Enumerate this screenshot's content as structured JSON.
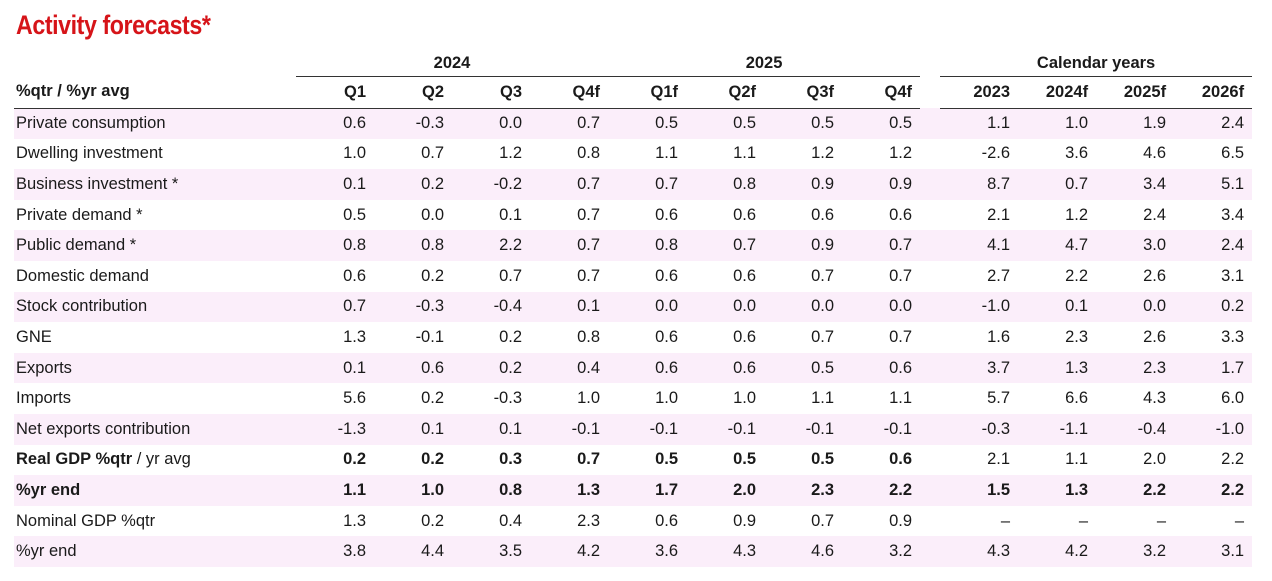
{
  "title": "Activity forecasts*",
  "groups": {
    "g2024": "2024",
    "g2025": "2025",
    "calendar": "Calendar years"
  },
  "header": {
    "label": "%qtr / %yr avg",
    "quarters": [
      "Q1",
      "Q2",
      "Q3",
      "Q4f",
      "Q1f",
      "Q2f",
      "Q3f",
      "Q4f"
    ],
    "years": [
      "2023",
      "2024f",
      "2025f",
      "2026f"
    ]
  },
  "rows": [
    {
      "label": "Private consumption",
      "label_rest": "",
      "q": [
        "0.6",
        "-0.3",
        "0.0",
        "0.7",
        "0.5",
        "0.5",
        "0.5",
        "0.5"
      ],
      "y": [
        "1.1",
        "1.0",
        "1.9",
        "2.4"
      ]
    },
    {
      "label": "Dwelling investment",
      "label_rest": "",
      "q": [
        "1.0",
        "0.7",
        "1.2",
        "0.8",
        "1.1",
        "1.1",
        "1.2",
        "1.2"
      ],
      "y": [
        "-2.6",
        "3.6",
        "4.6",
        "6.5"
      ]
    },
    {
      "label": "Business investment *",
      "label_rest": "",
      "q": [
        "0.1",
        "0.2",
        "-0.2",
        "0.7",
        "0.7",
        "0.8",
        "0.9",
        "0.9"
      ],
      "y": [
        "8.7",
        "0.7",
        "3.4",
        "5.1"
      ]
    },
    {
      "label": "Private demand *",
      "label_rest": "",
      "q": [
        "0.5",
        "0.0",
        "0.1",
        "0.7",
        "0.6",
        "0.6",
        "0.6",
        "0.6"
      ],
      "y": [
        "2.1",
        "1.2",
        "2.4",
        "3.4"
      ]
    },
    {
      "label": "Public demand *",
      "label_rest": "",
      "q": [
        "0.8",
        "0.8",
        "2.2",
        "0.7",
        "0.8",
        "0.7",
        "0.9",
        "0.7"
      ],
      "y": [
        "4.1",
        "4.7",
        "3.0",
        "2.4"
      ]
    },
    {
      "label": "Domestic demand",
      "label_rest": "",
      "q": [
        "0.6",
        "0.2",
        "0.7",
        "0.7",
        "0.6",
        "0.6",
        "0.7",
        "0.7"
      ],
      "y": [
        "2.7",
        "2.2",
        "2.6",
        "3.1"
      ]
    },
    {
      "label": "Stock contribution",
      "label_rest": "",
      "q": [
        "0.7",
        "-0.3",
        "-0.4",
        "0.1",
        "0.0",
        "0.0",
        "0.0",
        "0.0"
      ],
      "y": [
        "-1.0",
        "0.1",
        "0.0",
        "0.2"
      ]
    },
    {
      "label": "GNE",
      "label_rest": "",
      "q": [
        "1.3",
        "-0.1",
        "0.2",
        "0.8",
        "0.6",
        "0.6",
        "0.7",
        "0.7"
      ],
      "y": [
        "1.6",
        "2.3",
        "2.6",
        "3.3"
      ]
    },
    {
      "label": "Exports",
      "label_rest": "",
      "q": [
        "0.1",
        "0.6",
        "0.2",
        "0.4",
        "0.6",
        "0.6",
        "0.5",
        "0.6"
      ],
      "y": [
        "3.7",
        "1.3",
        "2.3",
        "1.7"
      ]
    },
    {
      "label": "Imports",
      "label_rest": "",
      "q": [
        "5.6",
        "0.2",
        "-0.3",
        "1.0",
        "1.0",
        "1.0",
        "1.1",
        "1.1"
      ],
      "y": [
        "5.7",
        "6.6",
        "4.3",
        "6.0"
      ]
    },
    {
      "label": "Net exports contribution",
      "label_rest": "",
      "q": [
        "-1.3",
        "0.1",
        "0.1",
        "-0.1",
        "-0.1",
        "-0.1",
        "-0.1",
        "-0.1"
      ],
      "y": [
        "-0.3",
        "-1.1",
        "-0.4",
        "-1.0"
      ]
    },
    {
      "label": "Real GDP %qtr",
      "label_rest": " / yr avg",
      "q": [
        "0.2",
        "0.2",
        "0.3",
        "0.7",
        "0.5",
        "0.5",
        "0.5",
        "0.6"
      ],
      "y": [
        "2.1",
        "1.1",
        "2.0",
        "2.2"
      ]
    },
    {
      "label": "%yr end",
      "label_rest": "",
      "q": [
        "1.1",
        "1.0",
        "0.8",
        "1.3",
        "1.7",
        "2.0",
        "2.3",
        "2.2"
      ],
      "y": [
        "1.5",
        "1.3",
        "2.2",
        "2.2"
      ]
    },
    {
      "label": "Nominal GDP %qtr",
      "label_rest": "",
      "q": [
        "1.3",
        "0.2",
        "0.4",
        "2.3",
        "0.6",
        "0.9",
        "0.7",
        "0.9"
      ],
      "y": [
        "–",
        "–",
        "–",
        "–"
      ]
    },
    {
      "label": "%yr end",
      "label_rest": "",
      "q": [
        "3.8",
        "4.4",
        "3.5",
        "4.2",
        "3.6",
        "4.3",
        "4.6",
        "3.2"
      ],
      "y": [
        "4.3",
        "4.2",
        "3.2",
        "3.1"
      ]
    }
  ]
}
